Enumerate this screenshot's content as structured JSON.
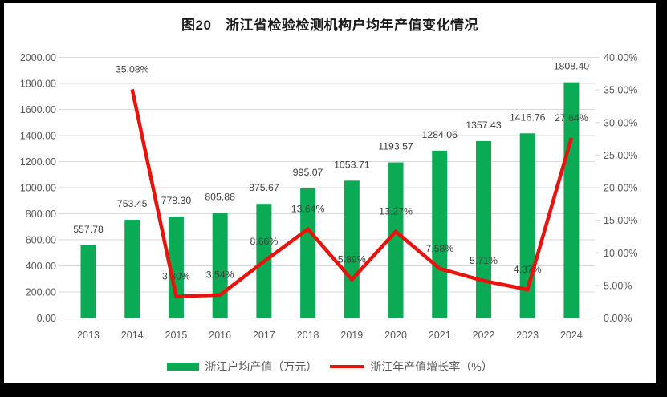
{
  "frame": {
    "background": "#000000",
    "panel_background": "#ffffff"
  },
  "title": "图20　浙江省检验检测机构户均年产值变化情况",
  "colors": {
    "bar": "#0bab55",
    "line": "#e9120d",
    "grid": "#d9d9d9",
    "axis_line": "#bfbfbf",
    "axis_text": "#595959",
    "data_label": "#404040",
    "title_text": "#1b1b1b"
  },
  "chart_data": {
    "type": "bar",
    "subtype": "bar-with-line-overlay",
    "title": "图20　浙江省检验检测机构户均年产值变化情况",
    "categories": [
      "2013",
      "2014",
      "2015",
      "2016",
      "2017",
      "2018",
      "2019",
      "2020",
      "2021",
      "2022",
      "2023",
      "2024"
    ],
    "series": [
      {
        "name": "浙江户均产值（万元）",
        "type": "bar",
        "axis": "left",
        "color": "#0bab55",
        "values": [
          557.78,
          753.45,
          778.3,
          805.88,
          875.67,
          995.07,
          1053.71,
          1193.57,
          1284.06,
          1357.43,
          1416.76,
          1808.4
        ]
      },
      {
        "name": "浙江年产值增长率（%）",
        "type": "line",
        "axis": "right",
        "color": "#e9120d",
        "values": [
          null,
          35.08,
          3.3,
          3.54,
          8.66,
          13.64,
          5.89,
          13.27,
          7.58,
          5.71,
          4.37,
          27.64
        ]
      }
    ],
    "left_axis": {
      "min": 0,
      "max": 2000,
      "step": 200,
      "tick_format": "0.00"
    },
    "right_axis": {
      "min": 0,
      "max": 40,
      "step": 5,
      "tick_format": "0.00%"
    },
    "grid": true,
    "data_labels": true,
    "legend_position": "bottom"
  }
}
